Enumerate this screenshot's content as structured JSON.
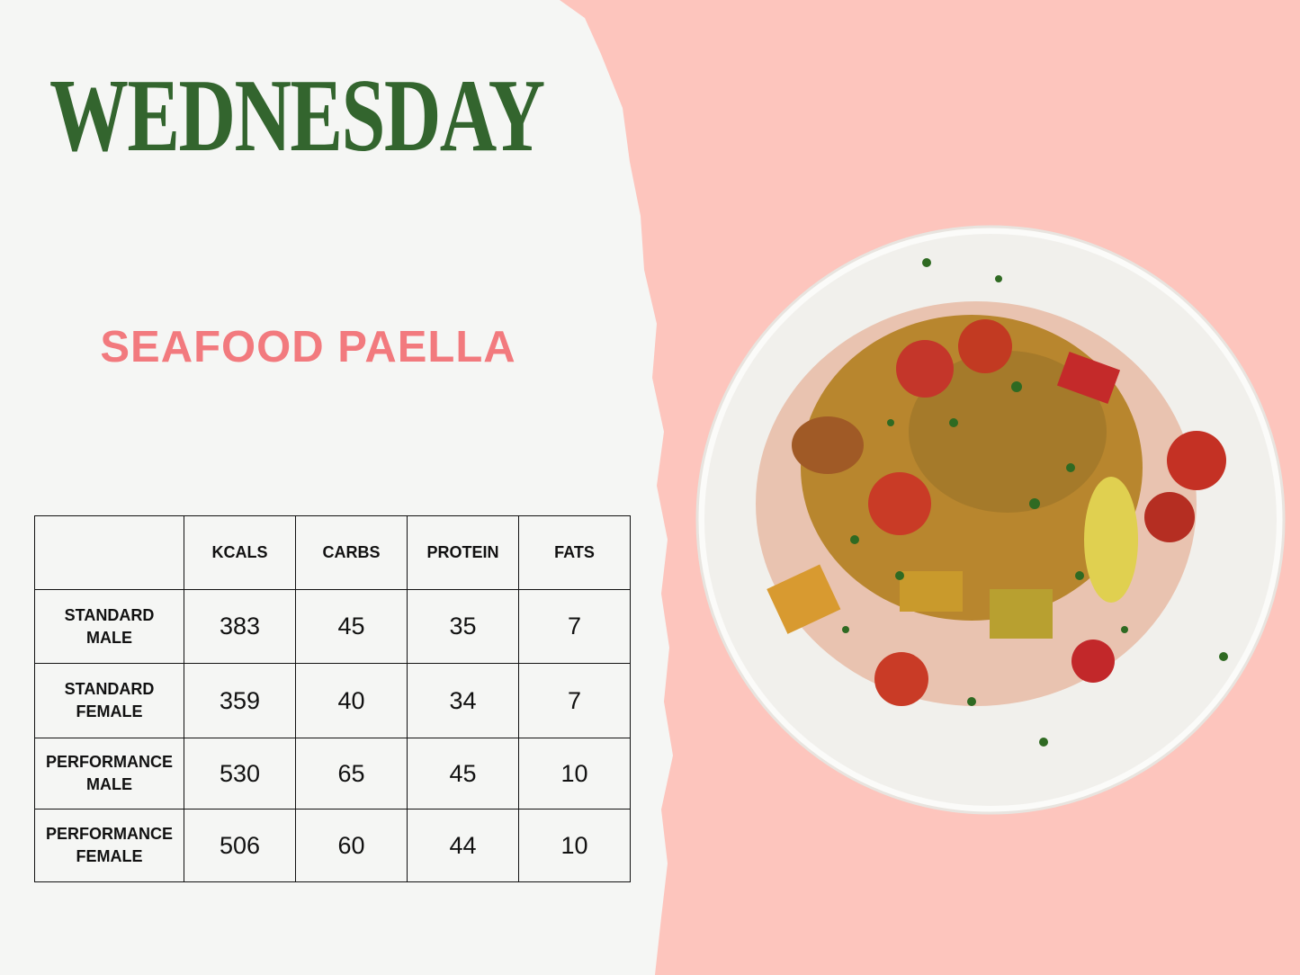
{
  "day": "WEDNESDAY",
  "dish_name": "SEAFOOD PAELLA",
  "colors": {
    "title_green": "#33652e",
    "dish_pink": "#f27a7e",
    "background_pink": "#fdc5bd"
  },
  "nutrition_table": {
    "columns": [
      "",
      "KCALS",
      "CARBS",
      "PROTEIN",
      "FATS"
    ],
    "rows": [
      {
        "label_line1": "STANDARD",
        "label_line2": "MALE",
        "values": [
          "383",
          "45",
          "35",
          "7"
        ]
      },
      {
        "label_line1": "STANDARD",
        "label_line2": "FEMALE",
        "values": [
          "359",
          "40",
          "34",
          "7"
        ]
      },
      {
        "label_line1": "PERFORMANCE",
        "label_line2": "MALE",
        "values": [
          "530",
          "65",
          "45",
          "10"
        ]
      },
      {
        "label_line1": "PERFORMANCE",
        "label_line2": "FEMALE",
        "values": [
          "506",
          "60",
          "44",
          "10"
        ]
      }
    ]
  },
  "image": {
    "subject": "plate-of-seafood-paella"
  }
}
